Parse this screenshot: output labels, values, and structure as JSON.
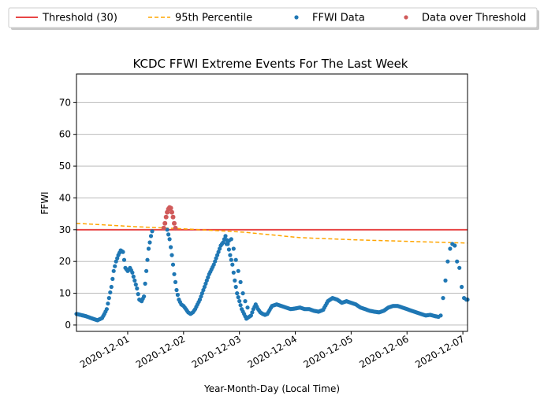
{
  "chart_data": {
    "type": "scatter",
    "title": "KCDC FFWI Extreme Events For The Last Week",
    "xlabel": "Year-Month-Day (Local Time)",
    "ylabel": "FFWI",
    "x_unit": "date",
    "xlim": [
      "2020-11-30 02:00",
      "2020-12-07 02:00"
    ],
    "ylim": [
      -2,
      79
    ],
    "y_ticks": [
      0,
      10,
      20,
      30,
      40,
      50,
      60,
      70
    ],
    "x_ticks": [
      "2020-12-01",
      "2020-12-02",
      "2020-12-03",
      "2020-12-04",
      "2020-12-05",
      "2020-12-06",
      "2020-12-07"
    ],
    "grid": "y",
    "legend_placement": "top",
    "legend": [
      {
        "label": "Threshold (30)",
        "kind": "line",
        "color": "#e84545"
      },
      {
        "label": "95th Percentile",
        "kind": "dashed",
        "color": "#ffa500"
      },
      {
        "label": "FFWI Data",
        "kind": "marker",
        "color": "#1f77b4"
      },
      {
        "label": "Data over Threshold",
        "kind": "marker",
        "color": "#d05a5a"
      }
    ],
    "threshold": {
      "name": "Threshold (30)",
      "value": 30,
      "color": "#e84545"
    },
    "percentile95": {
      "name": "95th Percentile",
      "color": "#ffa500",
      "x": [
        "2020-11-30 02:00",
        "2020-12-01 02:00",
        "2020-12-02 02:00",
        "2020-12-03 02:00",
        "2020-12-04 02:00",
        "2020-12-05 02:00",
        "2020-12-06 02:00",
        "2020-12-07 02:00"
      ],
      "y": [
        32,
        31,
        30.2,
        29.2,
        27.5,
        26.8,
        26.3,
        25.8
      ]
    },
    "series": [
      {
        "name": "FFWI Data",
        "color": "#1f77b4",
        "marker": "dot",
        "dense_x": [
          "2020-11-30 02:00",
          "2020-11-30 06:00",
          "2020-11-30 09:00",
          "2020-11-30 11:00",
          "2020-11-30 13:00",
          "2020-11-30 14:00",
          "2020-11-30 15:00",
          "2020-11-30 17:00",
          "2020-11-30 18:00",
          "2020-11-30 19:00",
          "2020-11-30 20:00",
          "2020-11-30 21:00",
          "2020-11-30 22:00",
          "2020-11-30 23:00",
          "2020-12-01 00:00",
          "2020-12-01 01:00",
          "2020-12-01 02:00",
          "2020-12-01 03:00",
          "2020-12-01 04:00",
          "2020-12-01 05:00",
          "2020-12-01 06:00",
          "2020-12-01 07:00",
          "2020-12-01 08:00",
          "2020-12-01 09:00",
          "2020-12-01 10:00",
          "2020-12-01 11:00",
          "2020-12-01 12:00",
          "2020-12-01 13:00",
          "2020-12-01 14:00",
          "2020-12-01 15:00",
          "2020-12-01 16:00",
          "2020-12-01 17:00",
          "2020-12-01 18:00",
          "2020-12-01 19:00",
          "2020-12-01 20:00",
          "2020-12-01 21:00",
          "2020-12-01 22:00",
          "2020-12-01 23:00",
          "2020-12-02 00:00",
          "2020-12-02 01:00",
          "2020-12-02 02:00",
          "2020-12-02 03:00",
          "2020-12-02 04:00",
          "2020-12-02 05:00",
          "2020-12-02 07:00",
          "2020-12-02 09:00",
          "2020-12-02 11:00",
          "2020-12-02 13:00",
          "2020-12-02 14:00",
          "2020-12-02 15:00",
          "2020-12-02 16:00",
          "2020-12-02 17:00",
          "2020-12-02 18:00",
          "2020-12-02 19:00",
          "2020-12-02 20:00",
          "2020-12-02 21:00",
          "2020-12-02 22:00",
          "2020-12-02 23:00",
          "2020-12-03 00:00",
          "2020-12-03 01:00",
          "2020-12-03 02:00",
          "2020-12-03 03:00",
          "2020-12-03 04:00",
          "2020-12-03 05:00",
          "2020-12-03 06:00",
          "2020-12-03 07:00",
          "2020-12-03 08:00",
          "2020-12-03 09:00",
          "2020-12-03 10:00",
          "2020-12-03 11:00",
          "2020-12-03 12:00",
          "2020-12-03 14:00",
          "2020-12-03 16:00",
          "2020-12-03 18:00",
          "2020-12-03 20:00",
          "2020-12-03 22:00",
          "2020-12-04 00:00",
          "2020-12-04 02:00",
          "2020-12-04 04:00",
          "2020-12-04 06:00",
          "2020-12-04 08:00",
          "2020-12-04 10:00",
          "2020-12-04 12:00",
          "2020-12-04 14:00",
          "2020-12-04 16:00",
          "2020-12-04 18:00",
          "2020-12-04 20:00",
          "2020-12-04 22:00",
          "2020-12-05 00:00",
          "2020-12-05 02:00",
          "2020-12-05 04:00",
          "2020-12-05 06:00",
          "2020-12-05 08:00",
          "2020-12-05 10:00",
          "2020-12-05 12:00",
          "2020-12-05 14:00",
          "2020-12-05 16:00",
          "2020-12-05 18:00",
          "2020-12-05 20:00",
          "2020-12-05 22:00",
          "2020-12-06 00:00",
          "2020-12-06 02:00",
          "2020-12-06 04:00",
          "2020-12-06 06:00",
          "2020-12-06 08:00",
          "2020-12-06 10:00",
          "2020-12-06 12:00",
          "2020-12-06 14:00"
        ],
        "dense_y": [
          3.5,
          2.8,
          2.0,
          1.5,
          2.2,
          3.5,
          5.0,
          12.0,
          17.0,
          20.0,
          22.0,
          23.5,
          23.0,
          18.0,
          17.0,
          18.0,
          16.5,
          14.0,
          11.5,
          8.0,
          7.5,
          9.0,
          17.0,
          24.0,
          28.0,
          31.0,
          33.5,
          36.0,
          37.0,
          36.0,
          33.0,
          30.0,
          27.0,
          22.0,
          16.0,
          11.0,
          8.0,
          6.5,
          6.0,
          5.0,
          4.0,
          3.5,
          4.0,
          5.0,
          8.0,
          12.0,
          16.0,
          19.0,
          21.0,
          23.0,
          25.0,
          26.0,
          28.0,
          25.5,
          22.0,
          19.0,
          14.0,
          10.0,
          7.5,
          5.0,
          3.5,
          2.0,
          2.5,
          3.0,
          5.0,
          6.5,
          5.0,
          4.0,
          3.5,
          3.2,
          3.5,
          6.0,
          6.5,
          6.0,
          5.5,
          5.0,
          5.2,
          5.5,
          5.0,
          5.0,
          4.5,
          4.2,
          4.8,
          7.5,
          8.5,
          8.0,
          7.0,
          7.5,
          7.0,
          6.5,
          5.5,
          5.0,
          4.5,
          4.2,
          4.0,
          4.5,
          5.5,
          6.0,
          6.0,
          5.5,
          5.0,
          4.5,
          4.0,
          3.5,
          3.0,
          3.2,
          2.8,
          2.5
        ],
        "sparse_x": [
          "2020-12-02 18:30",
          "2020-12-02 19:30",
          "2020-12-02 20:30",
          "2020-12-02 21:30",
          "2020-12-02 22:30",
          "2020-12-02 23:30",
          "2020-12-03 00:30",
          "2020-12-03 01:30",
          "2020-12-03 02:30",
          "2020-12-03 03:30",
          "2020-12-06 14:30",
          "2020-12-06 15:30",
          "2020-12-06 16:30",
          "2020-12-06 17:30",
          "2020-12-06 18:30",
          "2020-12-06 19:30",
          "2020-12-06 20:30",
          "2020-12-06 21:30",
          "2020-12-06 22:30",
          "2020-12-06 23:30",
          "2020-12-07 00:30",
          "2020-12-07 01:30",
          "2020-12-07 02:00"
        ],
        "sparse_y": [
          25.5,
          26.5,
          27.0,
          24.0,
          20.5,
          17.0,
          13.5,
          10.0,
          7.5,
          5.5,
          3.0,
          8.5,
          14.0,
          20.0,
          24.0,
          25.5,
          25.0,
          20.0,
          18.0,
          12.0,
          8.5,
          8.0,
          8.0
        ]
      },
      {
        "name": "Data over Threshold",
        "color": "#d05a5a",
        "marker": "dot",
        "x": [
          "2020-12-01 15:30",
          "2020-12-01 16:00",
          "2020-12-01 16:30",
          "2020-12-01 17:00",
          "2020-12-01 17:30",
          "2020-12-01 18:00",
          "2020-12-01 18:30",
          "2020-12-01 19:00",
          "2020-12-01 19:30",
          "2020-12-01 20:00",
          "2020-12-01 20:30"
        ],
        "y": [
          30.5,
          32.0,
          34.0,
          35.5,
          36.5,
          37.0,
          36.8,
          35.5,
          34.0,
          32.0,
          30.5
        ]
      }
    ]
  }
}
